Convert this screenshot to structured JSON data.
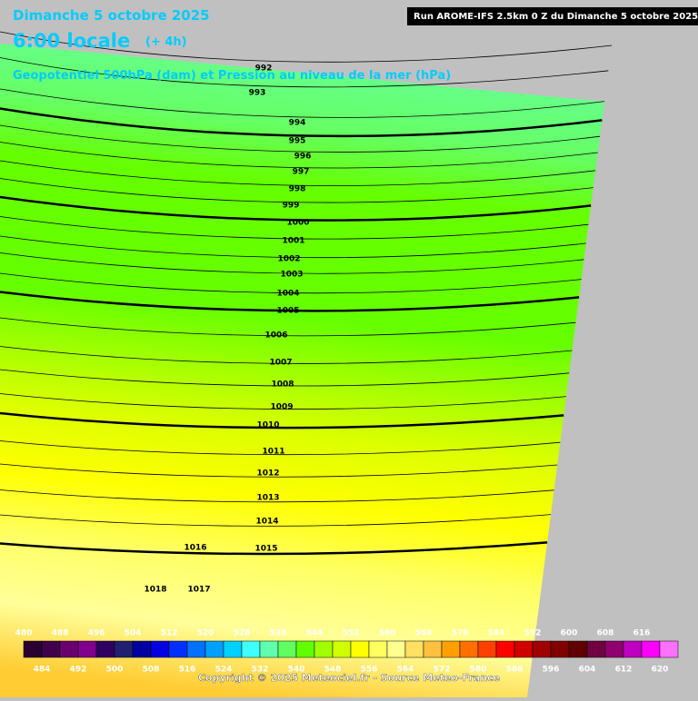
{
  "header": {
    "date": "Dimanche 5 octobre 2025",
    "time": "6:00 locale",
    "lead": "(+ 4h)",
    "subtitle": "Geopotentiel 500hPa (dam) et Pression au niveau de la mer (hPa)",
    "run": "Run AROME-IFS 2.5km 0 Z du Dimanche 5 octobre 2025"
  },
  "isobars": [
    992,
    993,
    994,
    995,
    996,
    997,
    998,
    999,
    1000,
    1001,
    1002,
    1003,
    1004,
    1005,
    1006,
    1007,
    1008,
    1009,
    1010,
    1011,
    1012,
    1013,
    1014,
    1015,
    1016,
    1017,
    1018
  ],
  "legend": {
    "top_labels": [
      480,
      488,
      496,
      504,
      512,
      520,
      528,
      536,
      544,
      552,
      560,
      568,
      576,
      584,
      592,
      600,
      608,
      616
    ],
    "bottom_labels": [
      484,
      492,
      500,
      508,
      516,
      524,
      532,
      540,
      548,
      556,
      564,
      572,
      580,
      588,
      596,
      604,
      612,
      620
    ],
    "colors": [
      "#2a0030",
      "#40004a",
      "#6a0070",
      "#800090",
      "#300060",
      "#202070",
      "#0000a0",
      "#0000e0",
      "#0030ff",
      "#0070ff",
      "#00a0ff",
      "#00d0ff",
      "#40ffff",
      "#60ffb0",
      "#60ff60",
      "#60ff00",
      "#a0ff00",
      "#d0ff00",
      "#ffff00",
      "#ffff60",
      "#ffff90",
      "#ffe060",
      "#ffc040",
      "#ffa000",
      "#ff7000",
      "#ff4000",
      "#ff0000",
      "#d00000",
      "#a00000",
      "#800000",
      "#600000",
      "#700040",
      "#900070",
      "#c000c0",
      "#ff00ff",
      "#ff70ff"
    ]
  },
  "footer": {
    "copyright": "Copyright © 2025 Meteociel.fr - Source Meteo-France"
  }
}
